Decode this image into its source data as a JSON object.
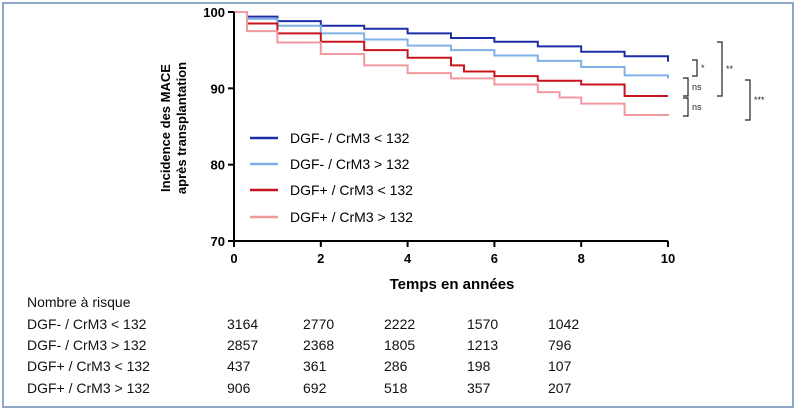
{
  "chart_data": {
    "type": "line",
    "title": "",
    "xlabel": "Temps en années",
    "ylabel_line1": "Incidence des MACE",
    "ylabel_line2": "après transplantation",
    "xlim": [
      0,
      10
    ],
    "ylim": [
      70,
      100
    ],
    "x_ticks": [
      0,
      2,
      4,
      6,
      8,
      10
    ],
    "y_ticks": [
      70,
      80,
      90,
      100
    ],
    "legend_position": "bottom-left",
    "series": [
      {
        "name": "DGF- / CrM3 < 132",
        "color": "#1f2fa8",
        "x": [
          0,
          0.3,
          1,
          2,
          3,
          4,
          5,
          6,
          7,
          8,
          9,
          10
        ],
        "y": [
          100,
          99.4,
          98.8,
          98.2,
          97.8,
          97.2,
          96.6,
          96.1,
          95.5,
          94.8,
          94.2,
          93.5
        ]
      },
      {
        "name": "DGF- / CrM3 > 132",
        "color": "#7fb0e8",
        "x": [
          0,
          0.3,
          1,
          2,
          3,
          4,
          5,
          6,
          7,
          8,
          9,
          10
        ],
        "y": [
          100,
          99.1,
          98.2,
          97.2,
          96.4,
          95.6,
          95.0,
          94.3,
          93.6,
          92.8,
          91.7,
          91.3
        ]
      },
      {
        "name": "DGF+ / CrM3 < 132",
        "color": "#c8141c",
        "x": [
          0,
          0.3,
          1,
          2,
          3,
          4,
          5,
          5.3,
          6,
          7,
          8,
          8.8,
          9,
          10
        ],
        "y": [
          100,
          98.5,
          97.2,
          96.1,
          95.0,
          94.0,
          93.0,
          92.2,
          91.6,
          91.0,
          90.5,
          90.5,
          89.0,
          89.0
        ]
      },
      {
        "name": "DGF+ / CrM3 > 132",
        "color": "#f09aa0",
        "x": [
          0,
          0.3,
          1,
          2,
          3,
          4,
          5,
          6,
          7,
          7.5,
          8,
          9,
          10
        ],
        "y": [
          100,
          97.5,
          96.0,
          94.5,
          93.0,
          92.0,
          91.3,
          90.5,
          89.5,
          88.8,
          88.0,
          86.5,
          86.4
        ]
      }
    ],
    "significance": [
      {
        "label": "*",
        "between": [
          0,
          1
        ]
      },
      {
        "label": "ns",
        "between": [
          1,
          2
        ]
      },
      {
        "label": "ns",
        "between": [
          2,
          3
        ]
      },
      {
        "label": "**",
        "between": [
          0,
          2
        ]
      },
      {
        "label": "***",
        "between": [
          0,
          3
        ]
      }
    ]
  },
  "risk_table": {
    "title": "Nombre à risque",
    "rows": [
      {
        "label": "DGF- / CrM3 < 132",
        "values": [
          "3164",
          "2770",
          "2222",
          "1570",
          "1042"
        ]
      },
      {
        "label": "DGF- / CrM3 > 132",
        "values": [
          "2857",
          "2368",
          "1805",
          "1213",
          "796"
        ]
      },
      {
        "label": "DGF+ / CrM3 < 132",
        "values": [
          "437",
          "361",
          "286",
          "198",
          "107"
        ]
      },
      {
        "label": "DGF+ / CrM3 > 132",
        "values": [
          "906",
          "692",
          "518",
          "357",
          "207"
        ]
      }
    ]
  }
}
